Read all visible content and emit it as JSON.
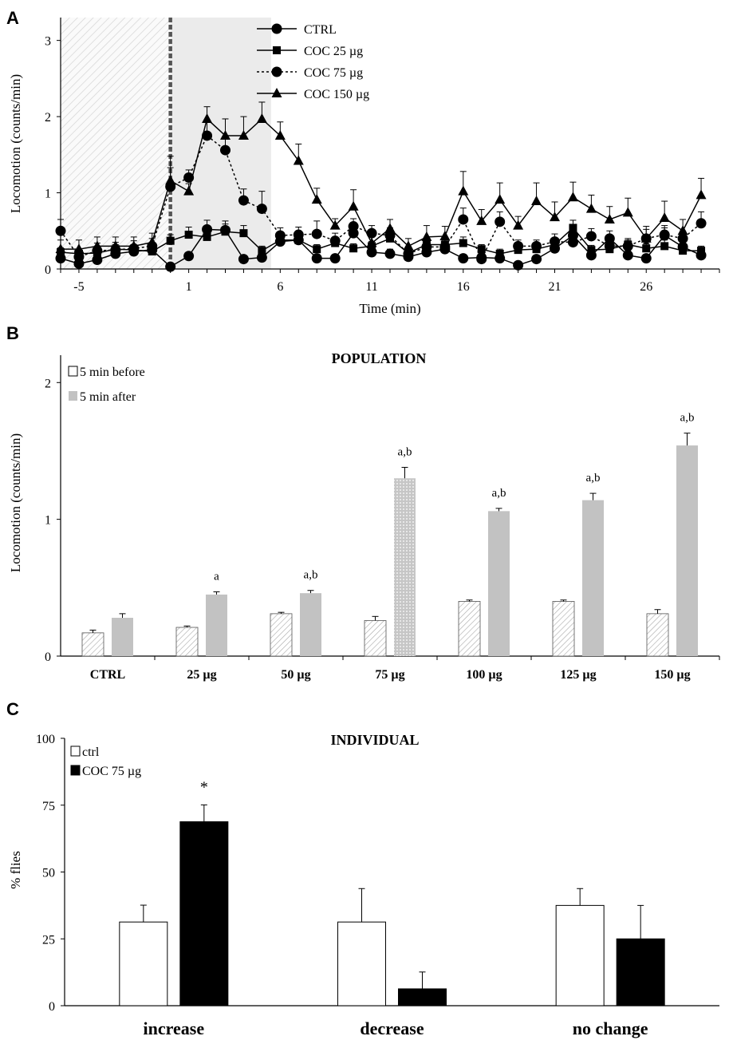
{
  "chart_data": [
    {
      "panel_label": "A",
      "type": "line",
      "title": "",
      "xlabel": "Time (min)",
      "ylabel": "Locomotion (counts/min)",
      "xlim": [
        -6,
        30
      ],
      "ylim": [
        0,
        3.3
      ],
      "xticks": [
        -5,
        1,
        6,
        11,
        16,
        21,
        26
      ],
      "yticks": [
        0,
        1,
        2,
        3
      ],
      "shaded_regions": [
        {
          "from": -6,
          "to": 0,
          "style": "hatched"
        },
        {
          "from": 0,
          "to": 5.5,
          "style": "gray"
        }
      ],
      "injection_marker_x": 0,
      "x": [
        -6,
        -5,
        -4,
        -3,
        -2,
        -1,
        0,
        1,
        2,
        3,
        4,
        5,
        6,
        7,
        8,
        9,
        10,
        11,
        12,
        13,
        14,
        15,
        16,
        17,
        18,
        19,
        20,
        21,
        22,
        23,
        24,
        25,
        26,
        27,
        28,
        29
      ],
      "series": [
        {
          "name": "CTRL",
          "marker": "circle",
          "dash": "solid",
          "values": [
            0.14,
            0.07,
            0.12,
            0.2,
            0.23,
            0.25,
            0.03,
            0.17,
            0.52,
            0.51,
            0.13,
            0.15,
            0.36,
            0.38,
            0.14,
            0.14,
            0.47,
            0.22,
            0.2,
            0.16,
            0.22,
            0.26,
            0.14,
            0.15,
            0.14,
            0.05,
            0.13,
            0.27,
            0.44,
            0.18,
            0.4,
            0.18,
            0.14,
            0.44,
            0.29,
            0.18
          ],
          "errors": [
            0.05,
            0.04,
            0.05,
            0.06,
            0.06,
            0.06,
            0.03,
            0.05,
            0.12,
            0.12,
            0.05,
            0.05,
            0.1,
            0.1,
            0.05,
            0.05,
            0.12,
            0.06,
            0.06,
            0.05,
            0.06,
            0.07,
            0.05,
            0.05,
            0.05,
            0.03,
            0.05,
            0.07,
            0.12,
            0.06,
            0.1,
            0.06,
            0.05,
            0.1,
            0.08,
            0.06
          ]
        },
        {
          "name": "COC 25 µg",
          "marker": "square",
          "dash": "solid",
          "values": [
            0.22,
            0.2,
            0.21,
            0.26,
            0.25,
            0.23,
            0.37,
            0.45,
            0.42,
            0.49,
            0.47,
            0.24,
            0.38,
            0.38,
            0.26,
            0.34,
            0.27,
            0.3,
            0.4,
            0.21,
            0.32,
            0.32,
            0.34,
            0.26,
            0.2,
            0.25,
            0.26,
            0.32,
            0.54,
            0.25,
            0.26,
            0.32,
            0.27,
            0.3,
            0.24,
            0.24
          ],
          "errors": [
            0.06,
            0.06,
            0.06,
            0.06,
            0.06,
            0.06,
            0.08,
            0.1,
            0.1,
            0.1,
            0.1,
            0.06,
            0.08,
            0.08,
            0.06,
            0.08,
            0.06,
            0.06,
            0.08,
            0.06,
            0.08,
            0.08,
            0.08,
            0.06,
            0.06,
            0.06,
            0.06,
            0.08,
            0.1,
            0.06,
            0.06,
            0.08,
            0.06,
            0.08,
            0.06,
            0.06
          ]
        },
        {
          "name": "COC 75 µg",
          "marker": "circle",
          "dash": "dotted",
          "values": [
            0.5,
            0.16,
            0.24,
            0.25,
            0.27,
            0.3,
            1.08,
            1.2,
            1.75,
            1.56,
            0.9,
            0.79,
            0.44,
            0.45,
            0.46,
            0.37,
            0.56,
            0.47,
            0.44,
            0.2,
            0.29,
            0.29,
            0.65,
            0.13,
            0.62,
            0.3,
            0.3,
            0.36,
            0.35,
            0.43,
            0.3,
            0.3,
            0.4,
            0.45,
            0.4,
            0.6
          ],
          "errors": [
            0.15,
            0.08,
            0.1,
            0.1,
            0.1,
            0.1,
            0.25,
            0.1,
            0.2,
            0.15,
            0.15,
            0.23,
            0.1,
            0.1,
            0.17,
            0.1,
            0.1,
            0.1,
            0.1,
            0.06,
            0.08,
            0.08,
            0.15,
            0.05,
            0.13,
            0.08,
            0.08,
            0.1,
            0.1,
            0.1,
            0.08,
            0.08,
            0.12,
            0.12,
            0.1,
            0.15
          ]
        },
        {
          "name": "COC 150 µg",
          "marker": "triangle",
          "dash": "solid",
          "values": [
            0.26,
            0.26,
            0.3,
            0.3,
            0.3,
            0.35,
            1.16,
            1.02,
            1.97,
            1.75,
            1.75,
            1.97,
            1.75,
            1.42,
            0.91,
            0.57,
            0.82,
            0.34,
            0.53,
            0.3,
            0.42,
            0.43,
            1.02,
            0.63,
            0.91,
            0.57,
            0.89,
            0.68,
            0.94,
            0.79,
            0.65,
            0.74,
            0.4,
            0.67,
            0.5,
            0.97
          ],
          "errors": [
            0.12,
            0.12,
            0.12,
            0.12,
            0.12,
            0.12,
            0.32,
            0.1,
            0.16,
            0.22,
            0.25,
            0.22,
            0.18,
            0.22,
            0.15,
            0.09,
            0.22,
            0.1,
            0.12,
            0.1,
            0.15,
            0.13,
            0.26,
            0.15,
            0.22,
            0.12,
            0.24,
            0.2,
            0.2,
            0.18,
            0.17,
            0.19,
            0.16,
            0.22,
            0.15,
            0.22
          ]
        }
      ],
      "legend_location": "top-center"
    },
    {
      "panel_label": "B",
      "type": "bar",
      "title": "POPULATION",
      "xlabel": "",
      "ylabel": "Locomotion (counts/min)",
      "ylim": [
        0,
        2.2
      ],
      "yticks": [
        0,
        1,
        2
      ],
      "categories": [
        "CTRL",
        "25 µg",
        "50 µg",
        "75 µg",
        "100 µg",
        "125 µg",
        "150 µg"
      ],
      "series": [
        {
          "name": "5 min before",
          "fill": "hatched",
          "values": [
            0.17,
            0.21,
            0.31,
            0.26,
            0.4,
            0.4,
            0.31
          ],
          "errors": [
            0.02,
            0.01,
            0.01,
            0.03,
            0.01,
            0.01,
            0.03
          ]
        },
        {
          "name": "5 min after",
          "fill": "gray",
          "values": [
            0.28,
            0.45,
            0.46,
            1.3,
            1.06,
            1.14,
            1.54
          ],
          "errors": [
            0.03,
            0.02,
            0.02,
            0.08,
            0.02,
            0.05,
            0.09
          ]
        }
      ],
      "annotations": [
        "",
        "a",
        "a,b",
        "a,b",
        "a,b",
        "a,b",
        "a,b"
      ],
      "legend_location": "top-left"
    },
    {
      "panel_label": "C",
      "type": "bar",
      "title": "INDIVIDUAL",
      "xlabel": "",
      "ylabel": "% flies",
      "ylim": [
        0,
        100
      ],
      "yticks": [
        0,
        25,
        50,
        75,
        100
      ],
      "categories": [
        "increase",
        "decrease",
        "no change"
      ],
      "series": [
        {
          "name": "ctrl",
          "fill": "white",
          "values": [
            31.3,
            31.3,
            37.5
          ],
          "errors": [
            6.3,
            12.5,
            6.3
          ]
        },
        {
          "name": "COC 75 µg",
          "fill": "black",
          "values": [
            68.8,
            6.3,
            25.0
          ],
          "errors": [
            6.3,
            6.3,
            12.5
          ]
        }
      ],
      "annotations": [
        "*",
        "",
        ""
      ],
      "legend_location": "top-left"
    }
  ]
}
